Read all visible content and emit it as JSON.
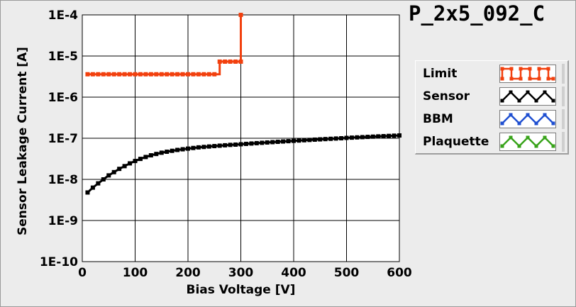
{
  "title": "P_2x5_092_C",
  "legend": {
    "items": [
      {
        "label": "Limit",
        "color": "#f2400e",
        "pattern": "square-wave"
      },
      {
        "label": "Sensor",
        "color": "#000000",
        "pattern": "triangle-wave"
      },
      {
        "label": "BBM",
        "color": "#1f4fd1",
        "pattern": "triangle-wave"
      },
      {
        "label": "Plaquette",
        "color": "#38a31a",
        "pattern": "triangle-wave"
      }
    ]
  },
  "chart_data": {
    "type": "line",
    "title": "P_2x5_092_C",
    "xlabel": "Bias Voltage [V]",
    "ylabel": "Sensor Leakage Current [A]",
    "xlim": [
      0,
      600
    ],
    "ylim": [
      1e-10,
      0.0001
    ],
    "yscale": "log",
    "grid": true,
    "legend_position": "right",
    "x_ticks": [
      0,
      100,
      200,
      300,
      400,
      500,
      600
    ],
    "y_ticks": [
      1e-10,
      1e-09,
      1e-08,
      1e-07,
      1e-06,
      1e-05,
      0.0001
    ],
    "x_tick_labels": [
      "0",
      "100",
      "200",
      "300",
      "400",
      "500",
      "600"
    ],
    "y_tick_labels": [
      "1E-10",
      "1E-9",
      "1E-8",
      "1E-7",
      "1E-6",
      "1E-5",
      "1E-4"
    ],
    "series": [
      {
        "name": "Limit",
        "color": "#f2400e",
        "step": true,
        "points": [
          [
            10,
            3.6e-06
          ],
          [
            20,
            3.6e-06
          ],
          [
            30,
            3.6e-06
          ],
          [
            40,
            3.6e-06
          ],
          [
            50,
            3.6e-06
          ],
          [
            60,
            3.6e-06
          ],
          [
            70,
            3.6e-06
          ],
          [
            80,
            3.6e-06
          ],
          [
            90,
            3.6e-06
          ],
          [
            100,
            3.6e-06
          ],
          [
            110,
            3.6e-06
          ],
          [
            120,
            3.6e-06
          ],
          [
            130,
            3.6e-06
          ],
          [
            140,
            3.6e-06
          ],
          [
            150,
            3.6e-06
          ],
          [
            160,
            3.6e-06
          ],
          [
            170,
            3.6e-06
          ],
          [
            180,
            3.6e-06
          ],
          [
            190,
            3.6e-06
          ],
          [
            200,
            3.6e-06
          ],
          [
            210,
            3.6e-06
          ],
          [
            220,
            3.6e-06
          ],
          [
            230,
            3.6e-06
          ],
          [
            240,
            3.6e-06
          ],
          [
            250,
            3.6e-06
          ],
          [
            260,
            7.3e-06
          ],
          [
            270,
            7.3e-06
          ],
          [
            280,
            7.3e-06
          ],
          [
            290,
            7.3e-06
          ],
          [
            300,
            7.3e-06
          ],
          [
            300,
            0.0001
          ]
        ]
      },
      {
        "name": "Sensor",
        "color": "#000000",
        "step": false,
        "points": [
          [
            10,
            4.8e-09
          ],
          [
            20,
            6.3e-09
          ],
          [
            30,
            8e-09
          ],
          [
            40,
            1e-08
          ],
          [
            50,
            1.25e-08
          ],
          [
            60,
            1.5e-08
          ],
          [
            70,
            1.8e-08
          ],
          [
            80,
            2.1e-08
          ],
          [
            90,
            2.45e-08
          ],
          [
            100,
            2.8e-08
          ],
          [
            110,
            3.15e-08
          ],
          [
            120,
            3.5e-08
          ],
          [
            130,
            3.85e-08
          ],
          [
            140,
            4.15e-08
          ],
          [
            150,
            4.45e-08
          ],
          [
            160,
            4.7e-08
          ],
          [
            170,
            4.95e-08
          ],
          [
            180,
            5.2e-08
          ],
          [
            190,
            5.4e-08
          ],
          [
            200,
            5.6e-08
          ],
          [
            210,
            5.8e-08
          ],
          [
            220,
            6e-08
          ],
          [
            230,
            6.15e-08
          ],
          [
            240,
            6.3e-08
          ],
          [
            250,
            6.45e-08
          ],
          [
            260,
            6.6e-08
          ],
          [
            270,
            6.75e-08
          ],
          [
            280,
            6.9e-08
          ],
          [
            290,
            7e-08
          ],
          [
            300,
            7.15e-08
          ],
          [
            310,
            7.3e-08
          ],
          [
            320,
            7.45e-08
          ],
          [
            330,
            7.6e-08
          ],
          [
            340,
            7.75e-08
          ],
          [
            350,
            7.9e-08
          ],
          [
            360,
            8.05e-08
          ],
          [
            370,
            8.2e-08
          ],
          [
            380,
            8.35e-08
          ],
          [
            390,
            8.5e-08
          ],
          [
            400,
            8.65e-08
          ],
          [
            410,
            8.8e-08
          ],
          [
            420,
            8.95e-08
          ],
          [
            430,
            9.1e-08
          ],
          [
            440,
            9.25e-08
          ],
          [
            450,
            9.4e-08
          ],
          [
            460,
            9.55e-08
          ],
          [
            470,
            9.7e-08
          ],
          [
            480,
            9.85e-08
          ],
          [
            490,
            1e-07
          ],
          [
            500,
            1.02e-07
          ],
          [
            510,
            1.035e-07
          ],
          [
            520,
            1.05e-07
          ],
          [
            530,
            1.065e-07
          ],
          [
            540,
            1.08e-07
          ],
          [
            550,
            1.095e-07
          ],
          [
            560,
            1.11e-07
          ],
          [
            570,
            1.125e-07
          ],
          [
            580,
            1.14e-07
          ],
          [
            590,
            1.155e-07
          ],
          [
            600,
            1.17e-07
          ]
        ]
      }
    ]
  }
}
